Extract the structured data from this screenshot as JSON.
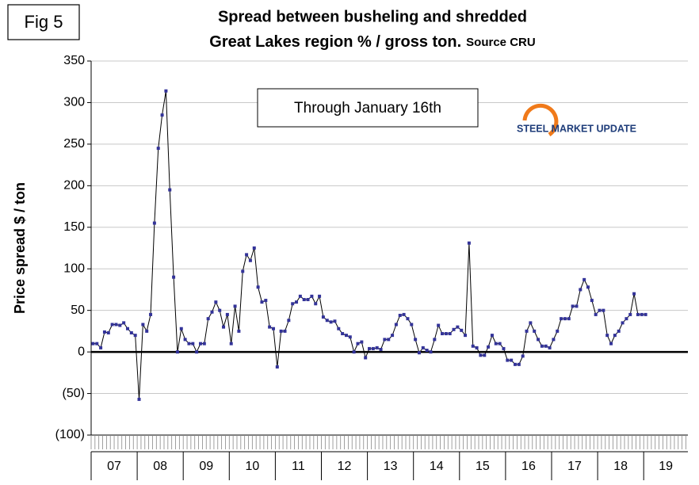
{
  "figure_label": "Fig 5",
  "annotation": "Through January 16th",
  "logo": "STEEL MARKET UPDATE",
  "chart_data": {
    "type": "line",
    "title": "Spread between busheling and shredded",
    "subtitle": "Great Lakes region % / gross ton.",
    "source": "Source CRU",
    "y_label": "Price spread $ / ton",
    "x_group_labels": [
      "07",
      "08",
      "09",
      "10",
      "11",
      "12",
      "13",
      "14",
      "15",
      "16",
      "17",
      "18",
      "19"
    ],
    "series": [
      {
        "color": "#333399",
        "line_color": "#000000",
        "values": [
          10,
          10,
          5,
          24,
          23,
          33,
          33,
          32,
          35,
          28,
          23,
          20,
          -57,
          33,
          25,
          45,
          155,
          245,
          285,
          314,
          195,
          90,
          0,
          28,
          15,
          10,
          10,
          0,
          10,
          10,
          40,
          48,
          60,
          50,
          30,
          45,
          10,
          55,
          25,
          97,
          117,
          110,
          125,
          78,
          60,
          62,
          30,
          28,
          -18,
          25,
          25,
          38,
          58,
          60,
          67,
          63,
          63,
          67,
          58,
          67,
          42,
          38,
          36,
          37,
          28,
          22,
          20,
          18,
          0,
          10,
          12,
          -7,
          4,
          4,
          5,
          3,
          15,
          15,
          20,
          33,
          44,
          45,
          40,
          33,
          15,
          -1,
          5,
          2,
          0,
          15,
          32,
          22,
          22,
          22,
          27,
          30,
          26,
          20,
          131,
          7,
          5,
          -4,
          -4,
          6,
          20,
          10,
          10,
          4,
          -10,
          -10,
          -15,
          -15,
          -5,
          25,
          35,
          25,
          15,
          7,
          7,
          5,
          15,
          25,
          40,
          40,
          40,
          55,
          55,
          75,
          87,
          78,
          62,
          45,
          50,
          50,
          20,
          10,
          20,
          25,
          35,
          40,
          45,
          70,
          45,
          45,
          45
        ]
      }
    ],
    "ylim": [
      -100,
      350
    ],
    "yticks": [
      {
        "value": -100,
        "label": "(100)"
      },
      {
        "value": -50,
        "label": "(50)"
      },
      0,
      50,
      100,
      150,
      200,
      250,
      300,
      350
    ],
    "grid": true
  }
}
